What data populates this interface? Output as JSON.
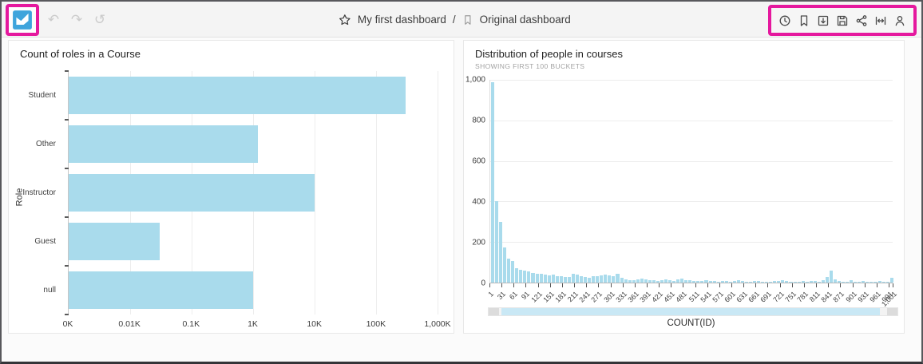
{
  "topbar": {
    "breadcrumb": {
      "primary": "My first dashboard",
      "separator": "/",
      "secondary": "Original dashboard"
    },
    "history": {
      "undo_glyph": "↶",
      "redo_glyph": "↷",
      "reset_glyph": "↺"
    },
    "toolbar_icons": [
      "clock",
      "bookmark",
      "export",
      "save",
      "share",
      "fit-width",
      "user"
    ]
  },
  "colors": {
    "highlight": "#E5189E",
    "logo_blue": "#3EA4DC",
    "bar_fill": "#A9DBEC"
  },
  "chart_data": [
    {
      "type": "bar",
      "orientation": "horizontal",
      "title": "Count of roles in a Course",
      "ylabel": "Role",
      "xlabel": "",
      "categories": [
        "Student",
        "Other",
        "Instructor",
        "Guest",
        "null"
      ],
      "values": [
        300000,
        1200,
        10000,
        30,
        1000
      ],
      "x_scale": "log",
      "x_log_decades": 6,
      "x_ticks": [
        "0K",
        "0.01K",
        "0.1K",
        "1K",
        "10K",
        "100K",
        "1,000K"
      ],
      "grid": "vertical"
    },
    {
      "type": "bar",
      "subtype": "histogram",
      "title": "Distribution of people in courses",
      "subtitle": "SHOWING FIRST 100 BUCKETS",
      "xlabel": "COUNT(ID)",
      "ylim": [
        0,
        1000
      ],
      "y_ticks": [
        "1,000",
        "800",
        "600",
        "400",
        "200",
        "0"
      ],
      "x_tick_labels": [
        "1",
        "31",
        "61",
        "91",
        "121",
        "151",
        "181",
        "211",
        "241",
        "271",
        "301",
        "331",
        "361",
        "391",
        "421",
        "451",
        "481",
        "511",
        "541",
        "571",
        "601",
        "631",
        "661",
        "691",
        "721",
        "751",
        "781",
        "811",
        "841",
        "871",
        "901",
        "931",
        "961",
        "991",
        "1,001"
      ],
      "values": [
        990,
        400,
        300,
        172,
        118,
        105,
        72,
        62,
        58,
        55,
        48,
        45,
        42,
        38,
        35,
        40,
        33,
        30,
        28,
        26,
        45,
        38,
        32,
        28,
        24,
        32,
        32,
        36,
        40,
        36,
        30,
        42,
        24,
        14,
        10,
        12,
        15,
        18,
        15,
        12,
        10,
        8,
        12,
        14,
        10,
        8,
        16,
        18,
        12,
        10,
        9,
        6,
        8,
        10,
        8,
        6,
        5,
        8,
        6,
        5,
        8,
        10,
        6,
        5,
        4,
        6,
        8,
        5,
        4,
        5,
        6,
        8,
        10,
        6,
        5,
        4,
        5,
        6,
        5,
        8,
        6,
        5,
        12,
        28,
        60,
        16,
        8,
        5,
        4,
        10,
        5,
        4,
        6,
        5,
        4,
        5,
        6,
        4,
        5,
        24
      ],
      "grid": "horizontal",
      "legend": "none"
    }
  ]
}
